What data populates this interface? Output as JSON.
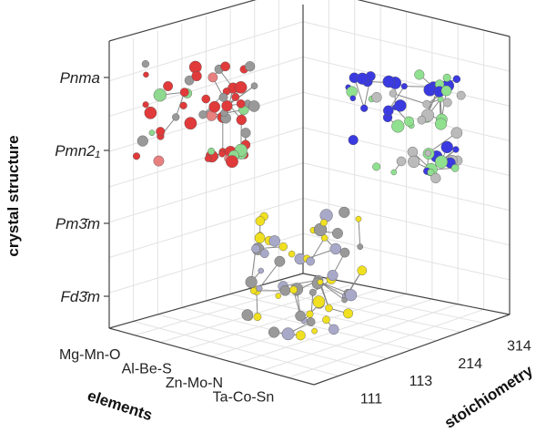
{
  "axes": {
    "y_label": "crystal structure",
    "y_ticks": [
      "Pnma",
      "Pmn2₁",
      "Pm3̄m",
      "Fd3̄m"
    ],
    "x_label": "elements",
    "x_ticks": [
      "Mg-Mn-O",
      "Al-Be-S",
      "Zn-Mo-N",
      "Ta-Co-Sn"
    ],
    "z_label": "stoichiometry",
    "z_ticks": [
      "111",
      "113",
      "214",
      "314"
    ]
  }
}
